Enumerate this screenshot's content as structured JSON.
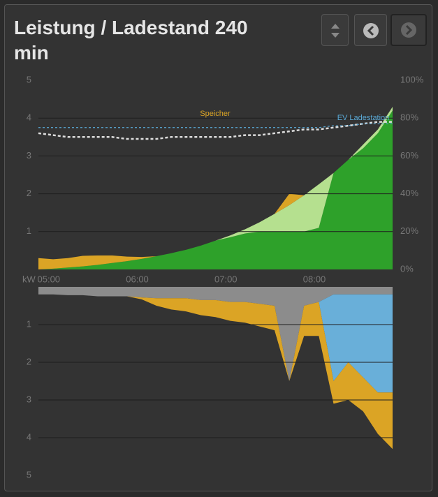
{
  "header": {
    "title": "Leistung / Ladestand 240 min"
  },
  "chart_data": [
    {
      "type": "area",
      "x": [
        "04:53",
        "05:03",
        "05:13",
        "05:23",
        "05:33",
        "05:43",
        "05:53",
        "06:03",
        "06:13",
        "06:23",
        "06:33",
        "06:43",
        "06:53",
        "07:03",
        "07:13",
        "07:23",
        "07:33",
        "07:43",
        "07:53",
        "08:03",
        "08:13",
        "08:23",
        "08:33",
        "08:43",
        "08:53"
      ],
      "xlim": [
        "04:53",
        "08:53"
      ],
      "xticks": [
        "05:00",
        "06:00",
        "07:00",
        "08:00"
      ],
      "ylim": [
        0,
        5
      ],
      "yticks": [
        1,
        2,
        3,
        4,
        5
      ],
      "y2lim": [
        0,
        100
      ],
      "y2ticks": [
        {
          "value": 0,
          "label": "0%"
        },
        {
          "value": 20,
          "label": "20%"
        },
        {
          "value": 40,
          "label": "40%"
        },
        {
          "value": 60,
          "label": "60%"
        },
        {
          "value": 80,
          "label": "80%"
        },
        {
          "value": 100,
          "label": "100%"
        }
      ],
      "grid": true,
      "series": [
        {
          "color": "#2ea12a",
          "values": [
            0,
            0.02,
            0.05,
            0.08,
            0.12,
            0.17,
            0.22,
            0.28,
            0.35,
            0.43,
            0.52,
            0.63,
            0.76,
            0.85,
            0.95,
            1.0,
            1.0,
            1.0,
            1.0,
            1.1,
            2.55,
            2.9,
            3.2,
            3.6,
            4.2
          ]
        },
        {
          "color": "#b5e08f",
          "values": [
            0,
            0,
            0,
            0,
            0,
            0,
            0,
            0,
            0,
            0,
            0,
            0,
            0,
            0.05,
            0.11,
            0.25,
            0.47,
            0.7,
            0.96,
            1.15,
            0,
            0,
            0.1,
            0.1,
            0.1
          ]
        },
        {
          "color": "#dba425",
          "values": [
            0.3,
            0.25,
            0.25,
            0.28,
            0.25,
            0.2,
            0.12,
            0.05,
            0,
            0,
            0,
            0,
            0,
            0,
            0,
            0,
            0,
            0.3,
            0,
            0,
            0,
            0,
            0,
            0,
            0
          ]
        },
        {
          "name": "Speicher",
          "type": "line",
          "axis": "y2",
          "color": "#dddddd",
          "label_color": "#dba425",
          "values": [
            72,
            71,
            70,
            70,
            70,
            70,
            69,
            69,
            69,
            70,
            70,
            70,
            70,
            70,
            71,
            71,
            72,
            73,
            74,
            74,
            75,
            76,
            77,
            78,
            78
          ]
        },
        {
          "name": "EV Ladestation",
          "type": "line",
          "axis": "y2",
          "color": "#5aa9d6",
          "label_color": "#5aa9d6",
          "values": [
            75,
            75,
            75,
            75,
            75,
            75,
            75,
            75,
            75,
            75,
            75,
            75,
            75,
            75,
            75,
            75,
            75,
            75,
            75,
            75,
            76,
            76,
            77,
            77,
            77
          ]
        }
      ]
    },
    {
      "type": "area",
      "inverted": true,
      "y_label": "kW",
      "x": [
        "04:53",
        "05:03",
        "05:13",
        "05:23",
        "05:33",
        "05:43",
        "05:53",
        "06:03",
        "06:13",
        "06:23",
        "06:33",
        "06:43",
        "06:53",
        "07:03",
        "07:13",
        "07:23",
        "07:33",
        "07:43",
        "07:53",
        "08:03",
        "08:13",
        "08:23",
        "08:33",
        "08:43",
        "08:53"
      ],
      "xlim": [
        "04:53",
        "08:53"
      ],
      "ylim": [
        0,
        5
      ],
      "yticks": [
        1,
        2,
        3,
        4,
        5
      ],
      "grid": true,
      "series": [
        {
          "color": "#8c8c8c",
          "values": [
            0.2,
            0.2,
            0.22,
            0.22,
            0.25,
            0.25,
            0.25,
            0.28,
            0.3,
            0.3,
            0.3,
            0.35,
            0.35,
            0.4,
            0.4,
            0.45,
            0.5,
            2.5,
            0.5,
            0.4,
            0.2,
            0.2,
            0.2,
            0.2,
            0.2
          ]
        },
        {
          "color": "#69afd9",
          "values": [
            0,
            0,
            0,
            0,
            0,
            0,
            0,
            0,
            0,
            0,
            0,
            0,
            0,
            0,
            0,
            0,
            0,
            0,
            0,
            0,
            2.3,
            1.8,
            2.2,
            2.6,
            2.6
          ]
        },
        {
          "color": "#dba425",
          "values": [
            0,
            0,
            0,
            0,
            0,
            0,
            0,
            0.05,
            0.2,
            0.3,
            0.35,
            0.4,
            0.45,
            0.5,
            0.55,
            0.6,
            0.65,
            0,
            0.8,
            0.9,
            0.6,
            1.0,
            0.9,
            1.1,
            1.5
          ]
        }
      ]
    }
  ]
}
